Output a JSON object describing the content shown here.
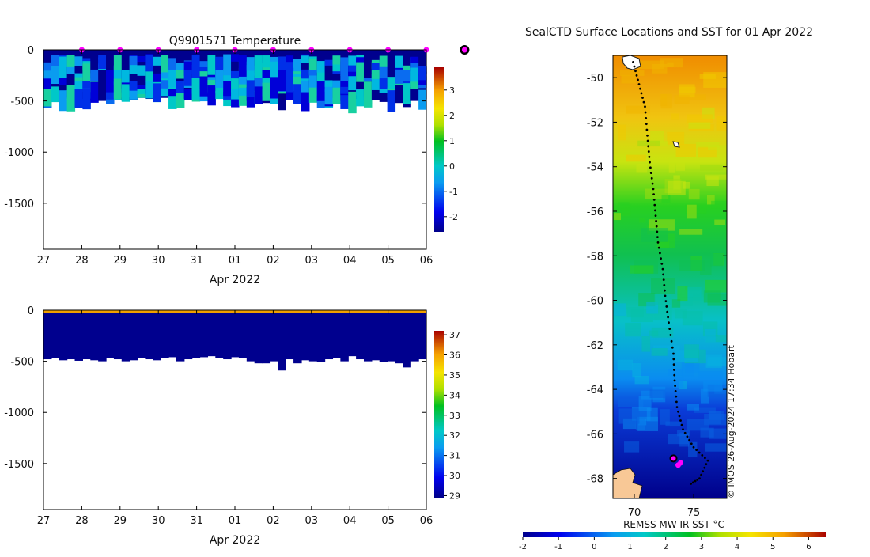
{
  "chart_data": [
    {
      "type": "heatmap",
      "title": "Q9901571  Temperature",
      "xlabel": "Apr 2022",
      "x_tick_labels": [
        "27",
        "28",
        "29",
        "30",
        "31",
        "01",
        "02",
        "03",
        "04",
        "05",
        "06"
      ],
      "y_tick_labels": [
        "0",
        "-500",
        "-1000",
        "-1500"
      ],
      "ylim": [
        -1950,
        0
      ],
      "colorbar_ticks": [
        "3",
        "2",
        "1",
        "0",
        "-1",
        "-2"
      ],
      "colorbar_range": [
        -2.6,
        3.9
      ],
      "profile_depths": [
        -480,
        -470,
        -490,
        -480,
        -495,
        -480,
        -490,
        -500,
        -470,
        -480,
        -500,
        -490,
        -470,
        -480,
        -490,
        -470,
        -460,
        -500,
        -480,
        -470,
        -460,
        -450,
        -470,
        -480,
        -460,
        -470,
        -500,
        -520,
        -520,
        -500,
        -590,
        -480,
        -520,
        -490,
        -500,
        -510,
        -480,
        -470,
        -500,
        -450,
        -480,
        -500,
        -490,
        -510,
        -500,
        -520,
        -560,
        -500,
        -480
      ],
      "surface_markers_x": [
        28,
        29,
        30,
        31,
        32,
        33,
        34,
        35,
        36,
        37,
        38
      ]
    },
    {
      "type": "heatmap",
      "title": "",
      "xlabel": "Apr 2022",
      "x_tick_labels": [
        "27",
        "28",
        "29",
        "30",
        "31",
        "01",
        "02",
        "03",
        "04",
        "05",
        "06"
      ],
      "y_tick_labels": [
        "0",
        "-500",
        "-1000",
        "-1500"
      ],
      "ylim": [
        -1950,
        0
      ],
      "colorbar_ticks": [
        "37",
        "36",
        "35",
        "34",
        "33",
        "32",
        "31",
        "30",
        "29"
      ],
      "colorbar_range": [
        28.9,
        37.2
      ],
      "profile_depths": [
        -480,
        -470,
        -490,
        -480,
        -495,
        -480,
        -490,
        -500,
        -470,
        -480,
        -500,
        -490,
        -470,
        -480,
        -490,
        -470,
        -460,
        -500,
        -480,
        -470,
        -460,
        -450,
        -470,
        -480,
        -460,
        -470,
        -500,
        -520,
        -520,
        -500,
        -590,
        -480,
        -520,
        -490,
        -500,
        -510,
        -480,
        -470,
        -500,
        -450,
        -480,
        -500,
        -490,
        -510,
        -500,
        -520,
        -560,
        -500,
        -480
      ]
    },
    {
      "type": "map",
      "title": "SealCTD Surface Locations and SST for 01 Apr 2022",
      "xlabel": "",
      "x_tick_labels": [
        "70",
        "75"
      ],
      "y_tick_labels": [
        "-50",
        "-52",
        "-54",
        "-56",
        "-58",
        "-60",
        "-62",
        "-64",
        "-66",
        "-68"
      ],
      "lon_range": [
        68.2,
        77.8
      ],
      "lat_range": [
        -68.9,
        -49.0
      ],
      "colorbar_label": "REMSS MW-IR SST °C",
      "colorbar_ticks": [
        "-2",
        "-1",
        "0",
        "1",
        "2",
        "3",
        "4",
        "5",
        "6"
      ],
      "colorbar_range": [
        -2,
        6.5
      ],
      "credit": "© IMOS 26-Aug-2024 17:34 Hobart",
      "track": [
        {
          "lon": 69.9,
          "lat": -49.3
        },
        {
          "lon": 70.4,
          "lat": -50.3
        },
        {
          "lon": 70.9,
          "lat": -51.3
        },
        {
          "lon": 71.1,
          "lat": -52.6
        },
        {
          "lon": 71.3,
          "lat": -53.8
        },
        {
          "lon": 71.6,
          "lat": -55.0
        },
        {
          "lon": 71.8,
          "lat": -56.2
        },
        {
          "lon": 72.0,
          "lat": -57.4
        },
        {
          "lon": 72.4,
          "lat": -58.6
        },
        {
          "lon": 72.6,
          "lat": -59.8
        },
        {
          "lon": 72.9,
          "lat": -61.0
        },
        {
          "lon": 73.3,
          "lat": -62.4
        },
        {
          "lon": 73.4,
          "lat": -63.6
        },
        {
          "lon": 73.6,
          "lat": -64.8
        },
        {
          "lon": 74.1,
          "lat": -65.8
        },
        {
          "lon": 75.0,
          "lat": -66.6
        },
        {
          "lon": 76.2,
          "lat": -67.2
        },
        {
          "lon": 75.5,
          "lat": -68.0
        },
        {
          "lon": 74.6,
          "lat": -68.3
        }
      ],
      "current_positions": [
        {
          "lon": 73.3,
          "lat": -67.1
        },
        {
          "lon": 73.7,
          "lat": -67.4
        },
        {
          "lon": 73.9,
          "lat": -67.3
        }
      ]
    }
  ]
}
